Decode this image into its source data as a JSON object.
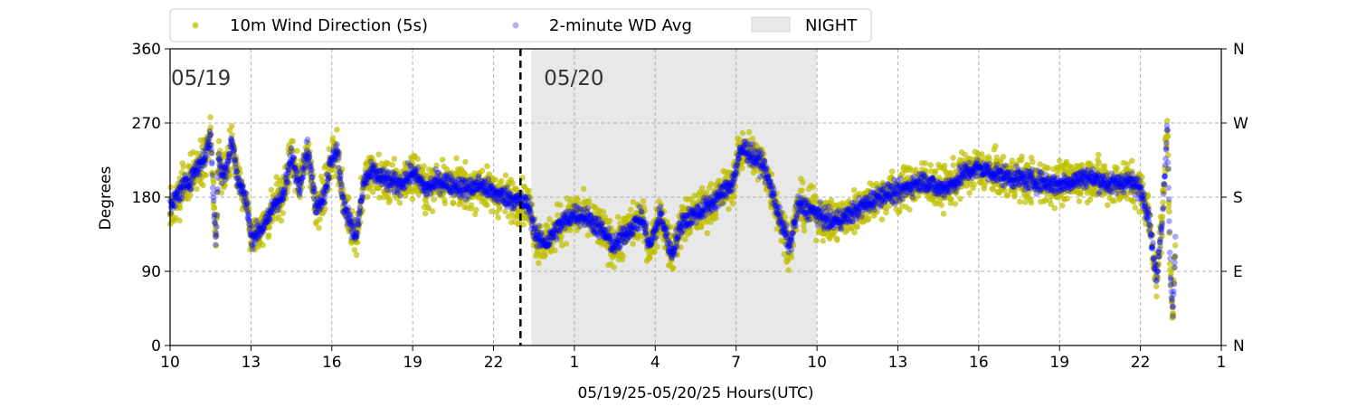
{
  "chart_data": {
    "type": "scatter",
    "title": "",
    "xlabel": "05/19/25-05/20/25  Hours(UTC)",
    "ylabel": "Degrees",
    "x_range_hours_since_0519_10utc": [
      0,
      39
    ],
    "ylim": [
      0,
      360
    ],
    "x_ticks": [
      {
        "hour": 0,
        "label": "10"
      },
      {
        "hour": 3,
        "label": "13"
      },
      {
        "hour": 6,
        "label": "16"
      },
      {
        "hour": 9,
        "label": "19"
      },
      {
        "hour": 12,
        "label": "22"
      },
      {
        "hour": 15,
        "label": "1"
      },
      {
        "hour": 18,
        "label": "4"
      },
      {
        "hour": 21,
        "label": "7"
      },
      {
        "hour": 24,
        "label": "10"
      },
      {
        "hour": 27,
        "label": "13"
      },
      {
        "hour": 30,
        "label": "16"
      },
      {
        "hour": 33,
        "label": "19"
      },
      {
        "hour": 36,
        "label": "22"
      },
      {
        "hour": 39,
        "label": "1"
      }
    ],
    "y_ticks": [
      0,
      90,
      180,
      270,
      360
    ],
    "y2_ticks": [
      {
        "value": 0,
        "label": "N"
      },
      {
        "value": 90,
        "label": "E"
      },
      {
        "value": 180,
        "label": "S"
      },
      {
        "value": 270,
        "label": "W"
      },
      {
        "value": 360,
        "label": "N"
      }
    ],
    "grid": true,
    "legend": {
      "placement": "top-left, above plot",
      "entries": [
        {
          "label": "10m Wind Direction (5s)",
          "color": "#bfbf00",
          "marker": "dot"
        },
        {
          "label": "2-minute WD Avg",
          "color": "#0000ff",
          "marker": "dot"
        },
        {
          "label": "NIGHT",
          "color": "#e8e8e8",
          "marker": "patch"
        }
      ]
    },
    "night_shading_hours": [
      13.4,
      24.0
    ],
    "day_boundary_hour": 13.0,
    "date_annotations": [
      {
        "text": "05/19",
        "hour": 0.0
      },
      {
        "text": "05/20",
        "hour": 13.4
      }
    ],
    "series": [
      {
        "name": "10m Wind Direction (5s)",
        "color": "#bfbf00",
        "spread": 25,
        "hours": [
          0,
          0.3,
          0.7,
          1.0,
          1.3,
          1.5,
          1.7,
          1.8,
          1.9,
          2.1,
          2.3,
          2.5,
          2.7,
          2.9,
          3.0,
          3.3,
          3.6,
          3.9,
          4.2,
          4.5,
          4.8,
          5.1,
          5.4,
          5.7,
          5.95,
          6.2,
          6.4,
          6.6,
          6.9,
          7.2,
          7.5,
          8.0,
          8.5,
          9.0,
          9.5,
          10.0,
          10.5,
          11.0,
          11.5,
          12.0,
          12.5,
          13.0,
          13.3,
          13.6,
          14.0,
          14.3,
          14.6,
          15.0,
          15.5,
          16.0,
          16.5,
          17.0,
          17.5,
          17.8,
          18.2,
          18.6,
          19.0,
          19.5,
          20.0,
          20.5,
          20.9,
          21.1,
          21.3,
          21.6,
          22.0,
          22.4,
          22.7,
          23.0,
          23.3,
          23.7,
          24.0,
          24.5,
          25.0,
          25.5,
          26.0,
          26.5,
          27.0,
          27.5,
          28.0,
          28.5,
          29.0,
          29.5,
          30.0,
          31.0,
          32.0,
          33.0,
          34.0,
          35.0,
          35.5,
          36.0,
          36.3,
          36.6,
          36.8,
          37.0,
          37.1,
          37.2,
          37.3
        ],
        "values": [
          165,
          185,
          200,
          215,
          230,
          255,
          120,
          230,
          210,
          215,
          250,
          200,
          190,
          160,
          130,
          140,
          150,
          175,
          180,
          230,
          195,
          240,
          170,
          180,
          220,
          240,
          175,
          160,
          130,
          200,
          210,
          200,
          195,
          210,
          190,
          200,
          195,
          190,
          195,
          185,
          180,
          175,
          170,
          130,
          125,
          140,
          150,
          160,
          155,
          140,
          120,
          140,
          155,
          120,
          160,
          110,
          150,
          160,
          170,
          185,
          200,
          230,
          240,
          230,
          220,
          180,
          145,
          120,
          170,
          165,
          160,
          150,
          155,
          165,
          175,
          185,
          185,
          195,
          200,
          190,
          195,
          210,
          215,
          205,
          200,
          195,
          205,
          195,
          200,
          190,
          160,
          80,
          150,
          270,
          100,
          40,
          130
        ]
      },
      {
        "name": "2-minute WD Avg",
        "color": "#0000ff",
        "spread": 12,
        "hours": [
          0,
          0.3,
          0.7,
          1.0,
          1.3,
          1.5,
          1.7,
          1.8,
          1.9,
          2.1,
          2.3,
          2.5,
          2.7,
          2.9,
          3.0,
          3.3,
          3.6,
          3.9,
          4.2,
          4.5,
          4.8,
          5.1,
          5.4,
          5.7,
          5.95,
          6.2,
          6.4,
          6.6,
          6.9,
          7.2,
          7.5,
          8.0,
          8.5,
          9.0,
          9.5,
          10.0,
          10.5,
          11.0,
          11.5,
          12.0,
          12.5,
          13.0,
          13.3,
          13.6,
          14.0,
          14.3,
          14.6,
          15.0,
          15.5,
          16.0,
          16.5,
          17.0,
          17.5,
          17.8,
          18.2,
          18.6,
          19.0,
          19.5,
          20.0,
          20.5,
          20.9,
          21.1,
          21.3,
          21.6,
          22.0,
          22.4,
          22.7,
          23.0,
          23.3,
          23.7,
          24.0,
          24.5,
          25.0,
          25.5,
          26.0,
          26.5,
          27.0,
          27.5,
          28.0,
          28.5,
          29.0,
          29.5,
          30.0,
          31.0,
          32.0,
          33.0,
          34.0,
          35.0,
          35.5,
          36.0,
          36.3,
          36.6,
          36.8,
          37.0,
          37.1,
          37.2,
          37.3
        ],
        "values": [
          165,
          185,
          200,
          215,
          230,
          255,
          120,
          230,
          210,
          215,
          250,
          200,
          190,
          160,
          130,
          140,
          150,
          175,
          180,
          230,
          195,
          240,
          170,
          180,
          220,
          240,
          175,
          160,
          130,
          200,
          210,
          200,
          195,
          210,
          190,
          200,
          195,
          190,
          195,
          185,
          180,
          175,
          170,
          130,
          125,
          140,
          150,
          160,
          155,
          140,
          120,
          140,
          155,
          120,
          160,
          110,
          150,
          160,
          170,
          185,
          200,
          230,
          240,
          230,
          220,
          180,
          145,
          120,
          170,
          165,
          160,
          150,
          155,
          165,
          175,
          185,
          185,
          195,
          200,
          190,
          195,
          210,
          215,
          205,
          200,
          195,
          205,
          195,
          200,
          190,
          160,
          80,
          150,
          270,
          100,
          40,
          130
        ]
      }
    ]
  }
}
